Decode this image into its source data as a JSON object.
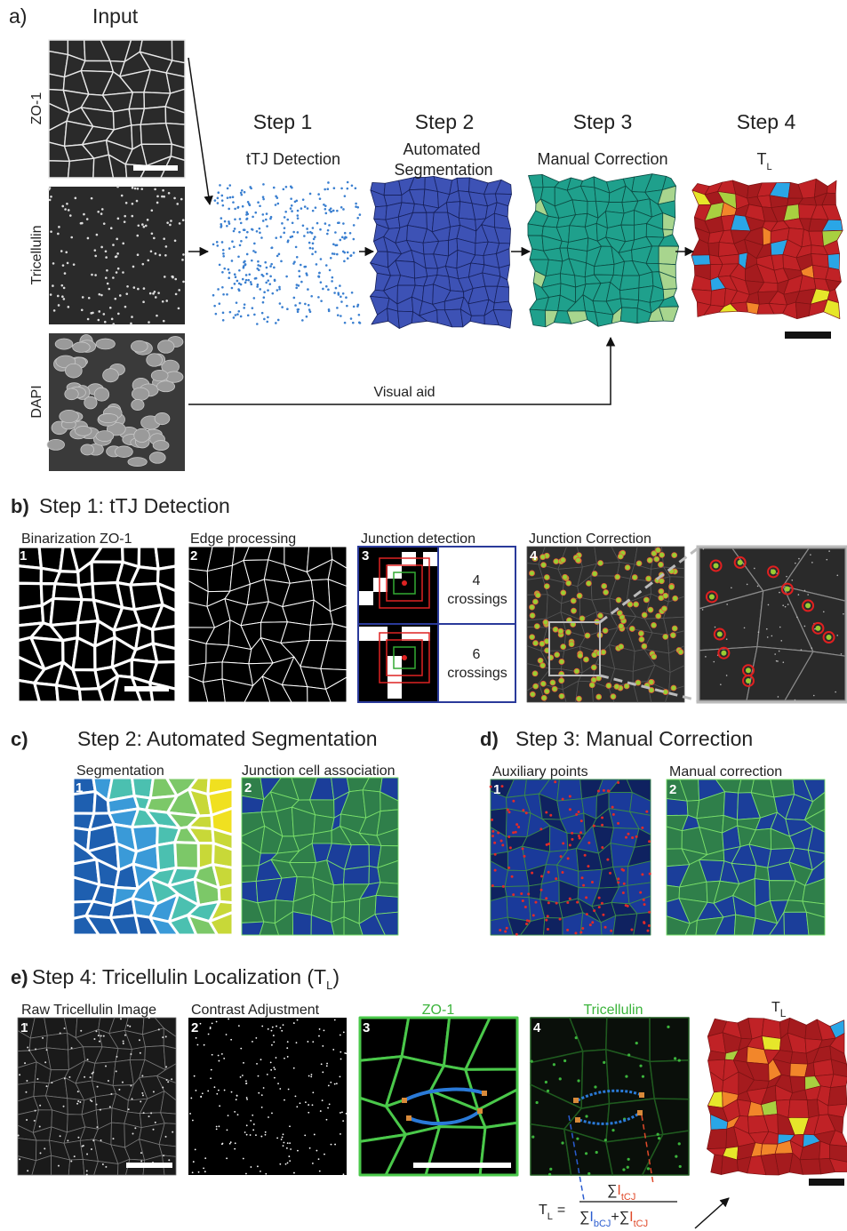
{
  "figure": {
    "a": {
      "label": "a)",
      "input": "Input",
      "channels": [
        "ZO-1",
        "Tricellulin",
        "DAPI"
      ],
      "steps": [
        {
          "title": "Step 1",
          "subtitle": [
            "tTJ Detection"
          ]
        },
        {
          "title": "Step 2",
          "subtitle": [
            "Automated",
            "Segmentation"
          ]
        },
        {
          "title": "Step 3",
          "subtitle": [
            "Manual Correction"
          ]
        },
        {
          "title": "Step 4",
          "symbol": "T",
          "symbol_sub": "L"
        }
      ],
      "connector": "Visual aid"
    },
    "b": {
      "label": "b)",
      "title": "Step 1: tTJ Detection",
      "panels": [
        {
          "number": "1",
          "caption": "Binarization ZO-1"
        },
        {
          "number": "2",
          "caption": "Edge processing"
        },
        {
          "number": "3",
          "caption": "Junction detection"
        },
        {
          "number": "4",
          "caption": "Junction Correction"
        }
      ],
      "crossings": [
        {
          "count": "4",
          "unit": "crossings"
        },
        {
          "count": "6",
          "unit": "crossings"
        }
      ]
    },
    "c": {
      "label": "c)",
      "title": "Step 2: Automated Segmentation",
      "panels": [
        {
          "number": "1",
          "caption": "Segmentation"
        },
        {
          "number": "2",
          "caption": "Junction cell association"
        }
      ]
    },
    "d": {
      "label": "d)",
      "title": "Step 3: Manual Correction",
      "panels": [
        {
          "number": "1",
          "caption": "Auxiliary points"
        },
        {
          "number": "2",
          "caption": "Manual correction"
        }
      ]
    },
    "e": {
      "label": "e)",
      "title": "Step 4: Tricellulin Localization (T",
      "title_sub": "L",
      "title_end": ")",
      "panels": [
        {
          "number": "1",
          "caption": "Raw Tricellulin Image"
        },
        {
          "number": "2",
          "caption": "Contrast Adjustment"
        },
        {
          "number": "3",
          "caption": "ZO-1"
        },
        {
          "number": "4",
          "caption": "Tricellulin"
        }
      ],
      "result": {
        "symbol": "T",
        "symbol_sub": "L"
      },
      "formula": {
        "lhs": "T",
        "lhs_sub": "L",
        "equals": "=",
        "sum": "∑",
        "intensity": "I",
        "tricellular": "tCJ",
        "bicellular": "bCJ",
        "plus": "+"
      }
    }
  }
}
